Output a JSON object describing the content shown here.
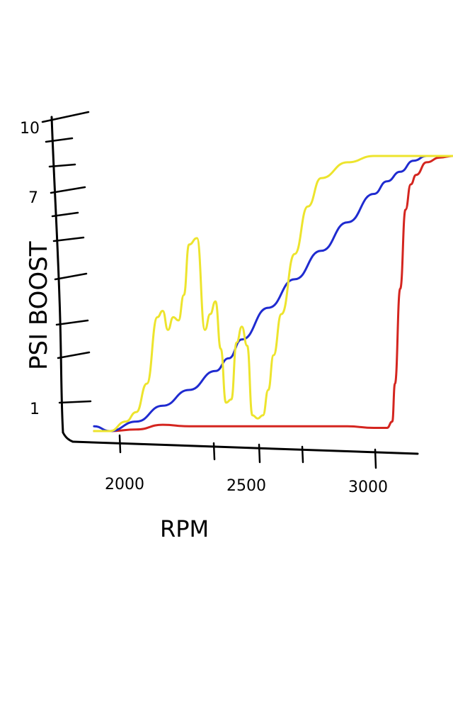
{
  "chart_data": {
    "type": "line",
    "xlabel": "RPM",
    "ylabel": "PSI BOOST",
    "x_tick_labels": [
      "2000",
      "2500",
      "3000"
    ],
    "y_tick_labels": [
      "1",
      "7",
      "10"
    ],
    "xlim": [
      1800,
      3200
    ],
    "ylim": [
      0,
      10
    ],
    "grid": false,
    "legend": "none",
    "series": [
      {
        "color": "#1f2bd0",
        "x": [
          1840,
          1900,
          2000,
          2100,
          2200,
          2300,
          2350,
          2400,
          2500,
          2600,
          2700,
          2800,
          2900,
          2950,
          3000,
          3050,
          3100,
          3150,
          3200
        ],
        "y": [
          0.15,
          0.0,
          0.3,
          0.8,
          1.3,
          1.9,
          2.3,
          2.9,
          3.9,
          4.8,
          5.7,
          6.6,
          7.5,
          7.9,
          8.2,
          8.55,
          8.7,
          8.7,
          8.7
        ]
      },
      {
        "color": "#d4251f",
        "x": [
          1840,
          1900,
          2000,
          2100,
          2200,
          2400,
          2600,
          2800,
          2900,
          2950,
          2970,
          2980,
          3000,
          3020,
          3040,
          3060,
          3100,
          3150,
          3200
        ],
        "y": [
          0.0,
          0.0,
          0.05,
          0.2,
          0.15,
          0.15,
          0.15,
          0.15,
          0.1,
          0.1,
          0.3,
          1.5,
          4.5,
          7.0,
          7.8,
          8.1,
          8.5,
          8.65,
          8.7
        ]
      },
      {
        "color": "#ede42d",
        "x": [
          1840,
          1900,
          1960,
          2000,
          2040,
          2080,
          2100,
          2120,
          2140,
          2160,
          2180,
          2200,
          2230,
          2260,
          2280,
          2300,
          2320,
          2340,
          2360,
          2380,
          2400,
          2420,
          2440,
          2460,
          2480,
          2500,
          2520,
          2550,
          2600,
          2650,
          2700,
          2800,
          2900,
          3000,
          3050,
          3100,
          3200
        ],
        "y": [
          0.0,
          0.0,
          0.3,
          0.6,
          1.5,
          3.6,
          3.8,
          3.2,
          3.6,
          3.5,
          4.3,
          5.9,
          6.1,
          3.2,
          3.7,
          4.1,
          2.6,
          0.9,
          1.0,
          2.8,
          3.3,
          2.7,
          0.5,
          0.4,
          0.5,
          1.3,
          2.4,
          3.7,
          5.6,
          7.1,
          8.0,
          8.5,
          8.7,
          8.7,
          8.7,
          8.7,
          8.7
        ]
      }
    ]
  }
}
